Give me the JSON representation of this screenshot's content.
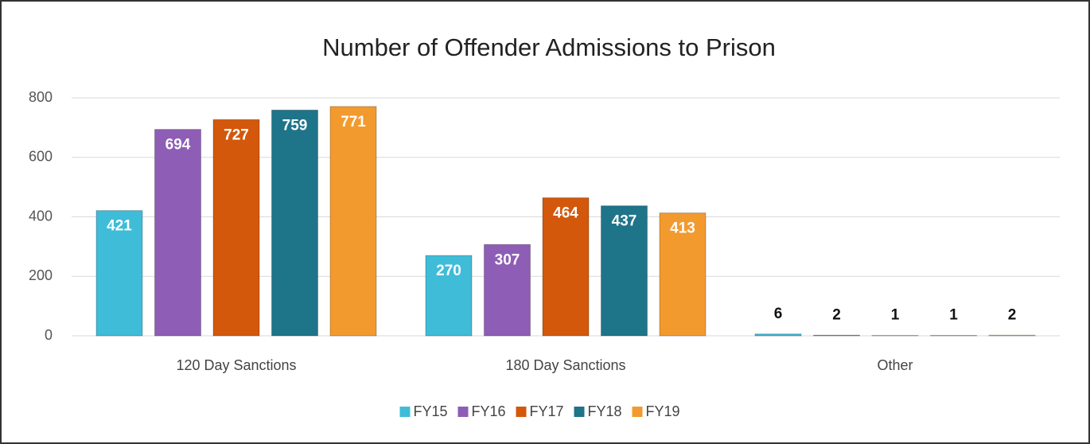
{
  "chart_data": {
    "type": "bar",
    "title": "Number of Offender Admissions to Prison",
    "categories": [
      "120 Day Sanctions",
      "180 Day Sanctions",
      "Other"
    ],
    "series": [
      {
        "name": "FY15",
        "color": "#3fbcd8",
        "values": [
          421,
          270,
          6
        ]
      },
      {
        "name": "FY16",
        "color": "#8e5db5",
        "values": [
          694,
          307,
          2
        ]
      },
      {
        "name": "FY17",
        "color": "#d3580c",
        "values": [
          727,
          464,
          1
        ]
      },
      {
        "name": "FY18",
        "color": "#1e7489",
        "values": [
          759,
          437,
          1
        ]
      },
      {
        "name": "FY19",
        "color": "#f39a2e",
        "values": [
          771,
          413,
          2
        ]
      }
    ],
    "ylim": [
      0,
      800
    ],
    "yticks": [
      0,
      200,
      400,
      600,
      800
    ],
    "grid": true,
    "legend": "bottom"
  }
}
